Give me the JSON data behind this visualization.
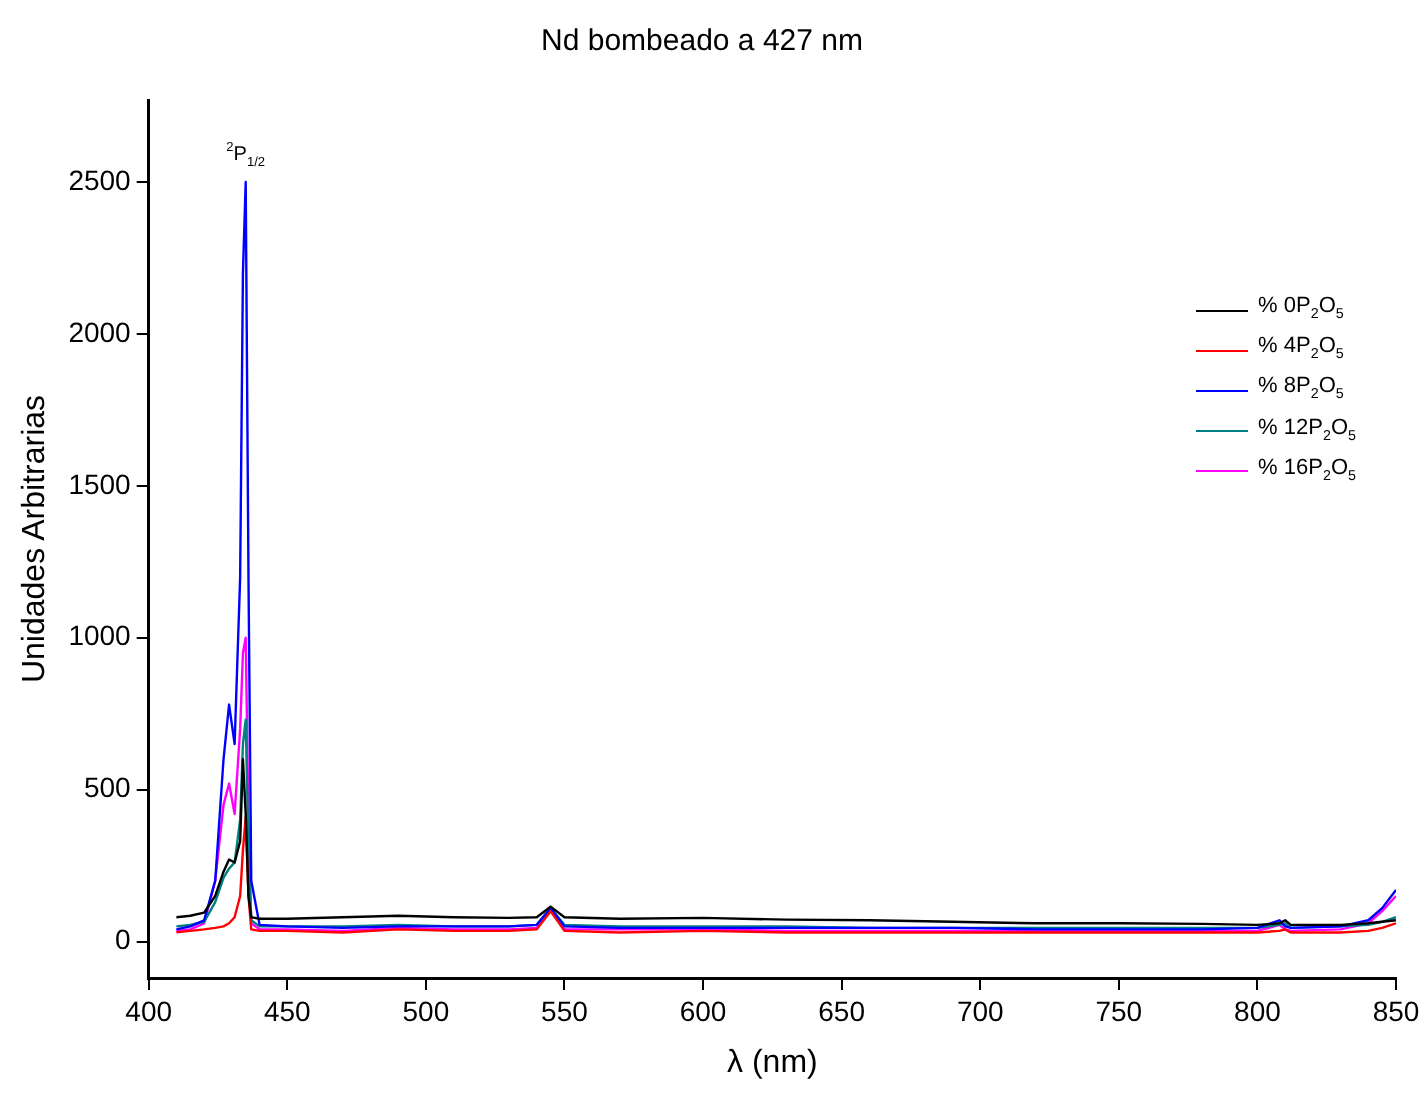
{
  "chart_data": {
    "type": "line",
    "title": "Nd bombeado a 427 nm",
    "xlabel": "λ (nm)",
    "ylabel": "Unidades Arbitrarias",
    "x": [
      410,
      415,
      420,
      424,
      427,
      429,
      431,
      433,
      434,
      435,
      436,
      437,
      440,
      450,
      470,
      490,
      510,
      530,
      540,
      545,
      550,
      570,
      600,
      630,
      660,
      690,
      720,
      750,
      780,
      800,
      808,
      810,
      812,
      830,
      840,
      845,
      850
    ],
    "series": [
      {
        "name": "% 0P$_{2}$O$_{5}$",
        "color": "#000000",
        "values": [
          80,
          85,
          95,
          150,
          230,
          270,
          260,
          330,
          600,
          420,
          150,
          80,
          75,
          75,
          80,
          85,
          80,
          78,
          80,
          115,
          80,
          75,
          78,
          72,
          70,
          65,
          60,
          60,
          58,
          55,
          60,
          70,
          55,
          55,
          60,
          65,
          70
        ]
      },
      {
        "name": "% 4P$_{2}$O$_{5}$",
        "color": "#ff0000",
        "values": [
          30,
          35,
          40,
          45,
          50,
          60,
          80,
          150,
          300,
          410,
          150,
          40,
          35,
          35,
          30,
          40,
          35,
          35,
          40,
          100,
          35,
          30,
          35,
          30,
          30,
          30,
          30,
          30,
          30,
          30,
          35,
          40,
          30,
          30,
          35,
          45,
          60
        ]
      },
      {
        "name": "% 8P$_{2}$O$_{5}$",
        "color": "#0000ff",
        "values": [
          40,
          50,
          70,
          200,
          600,
          780,
          650,
          1200,
          2200,
          2500,
          1200,
          200,
          55,
          50,
          45,
          50,
          50,
          50,
          55,
          110,
          50,
          45,
          45,
          45,
          45,
          45,
          40,
          40,
          40,
          45,
          70,
          50,
          45,
          50,
          70,
          110,
          170
        ]
      },
      {
        "name": "% 12P$_{2}$O$_{5}$",
        "color": "#008080",
        "values": [
          50,
          55,
          65,
          130,
          210,
          240,
          260,
          400,
          650,
          730,
          300,
          70,
          50,
          50,
          50,
          55,
          50,
          50,
          55,
          110,
          55,
          50,
          50,
          50,
          45,
          45,
          45,
          45,
          45,
          45,
          55,
          60,
          45,
          50,
          55,
          65,
          80
        ]
      },
      {
        "name": "% 16P$_{2}$O$_{5}$",
        "color": "#ff00ff",
        "values": [
          35,
          40,
          60,
          200,
          450,
          520,
          420,
          700,
          950,
          1000,
          400,
          60,
          40,
          40,
          35,
          45,
          40,
          40,
          45,
          105,
          40,
          40,
          40,
          35,
          35,
          35,
          35,
          35,
          35,
          35,
          55,
          40,
          35,
          40,
          60,
          100,
          150
        ]
      }
    ],
    "xlim": [
      400,
      850
    ],
    "xticks": [
      400,
      450,
      500,
      550,
      600,
      650,
      700,
      750,
      800,
      850
    ],
    "ylim": [
      -120,
      2770
    ],
    "yticks": [
      0,
      500,
      1000,
      1500,
      2000,
      2500
    ],
    "annotations": [
      {
        "text": "$^{2}$P$_{1/2}$",
        "x": 435,
        "y": 2500
      }
    ],
    "legend": "top right",
    "grid": false,
    "marker": "none",
    "line_style": "solid"
  }
}
